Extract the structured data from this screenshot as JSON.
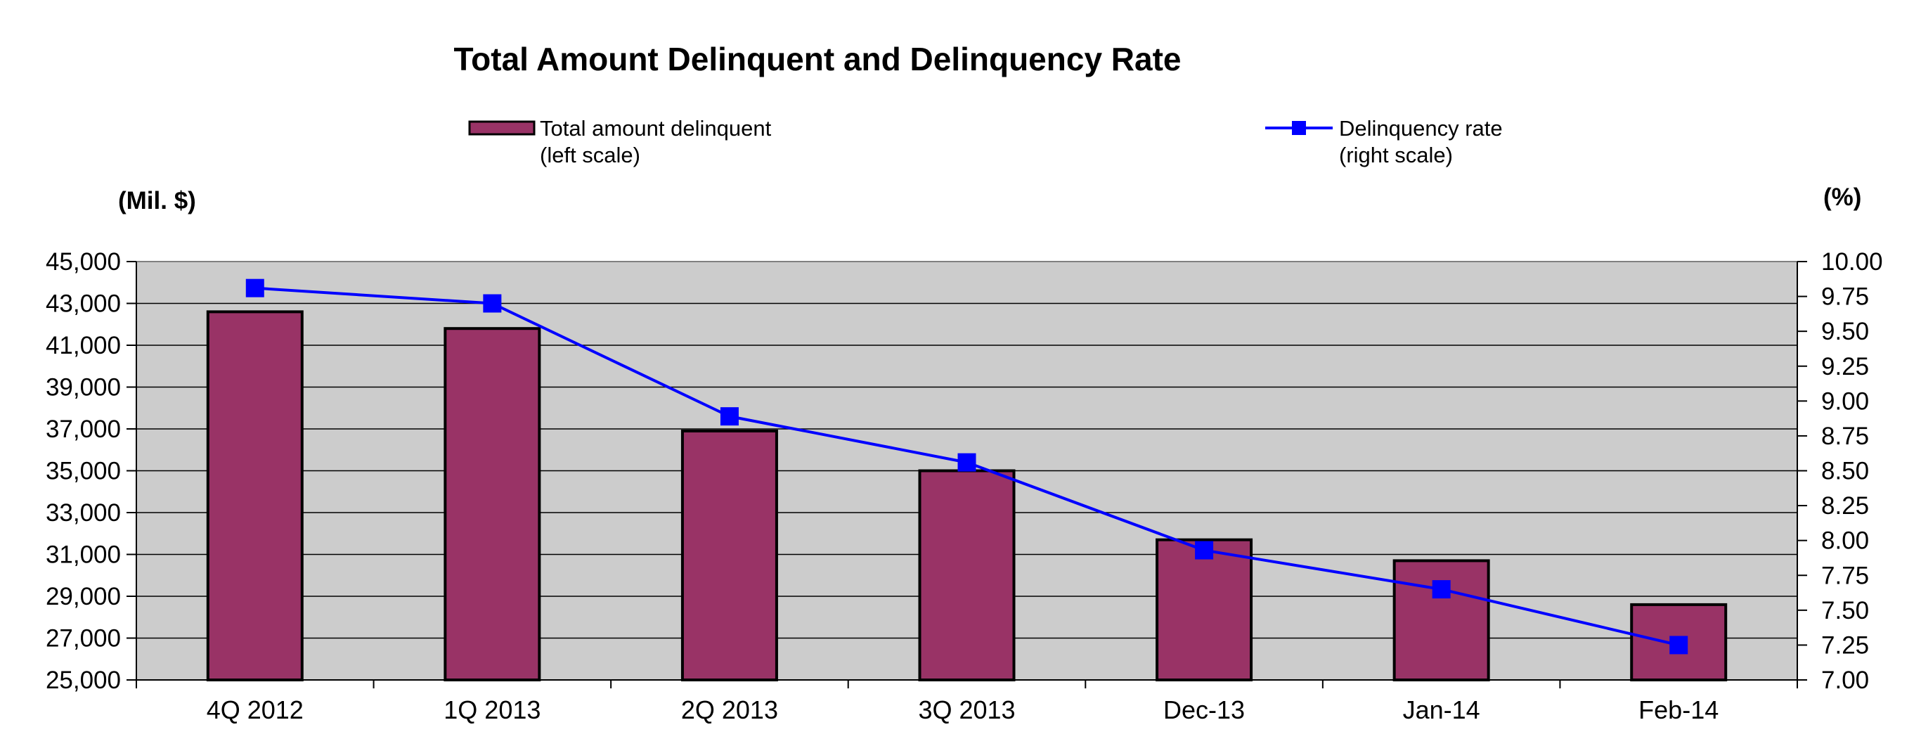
{
  "chart_data": {
    "type": "bar",
    "title": "Total Amount Delinquent and Delinquency Rate",
    "categories": [
      "4Q 2012",
      "1Q 2013",
      "2Q 2013",
      "3Q 2013",
      "Dec-13",
      "Jan-14",
      "Feb-14"
    ],
    "series": [
      {
        "name": "Total amount delinquent",
        "name_line2": "(left scale)",
        "type": "bar",
        "axis": "left",
        "color": "#993366",
        "values": [
          42600,
          41800,
          36900,
          35000,
          31700,
          30700,
          28600
        ]
      },
      {
        "name": "Delinquency rate",
        "name_line2": "(right scale)",
        "type": "line",
        "axis": "right",
        "color": "#0000ff",
        "marker": "square",
        "values": [
          9.81,
          9.7,
          8.89,
          8.56,
          7.93,
          7.65,
          7.25
        ]
      }
    ],
    "y_left": {
      "unit_label": "(Mil. $)",
      "ylim": [
        25000,
        45000
      ],
      "ticks": [
        "25,000",
        "27,000",
        "29,000",
        "31,000",
        "33,000",
        "35,000",
        "37,000",
        "39,000",
        "41,000",
        "43,000",
        "45,000"
      ]
    },
    "y_right": {
      "unit_label": "(%)",
      "ylim": [
        7.0,
        10.0
      ],
      "ticks": [
        "7.00",
        "7.25",
        "7.50",
        "7.75",
        "8.00",
        "8.25",
        "8.50",
        "8.75",
        "9.00",
        "9.25",
        "9.50",
        "9.75",
        "10.00"
      ]
    },
    "plot_background": "#cccccc",
    "gridlines": true,
    "legend_position": "top"
  }
}
